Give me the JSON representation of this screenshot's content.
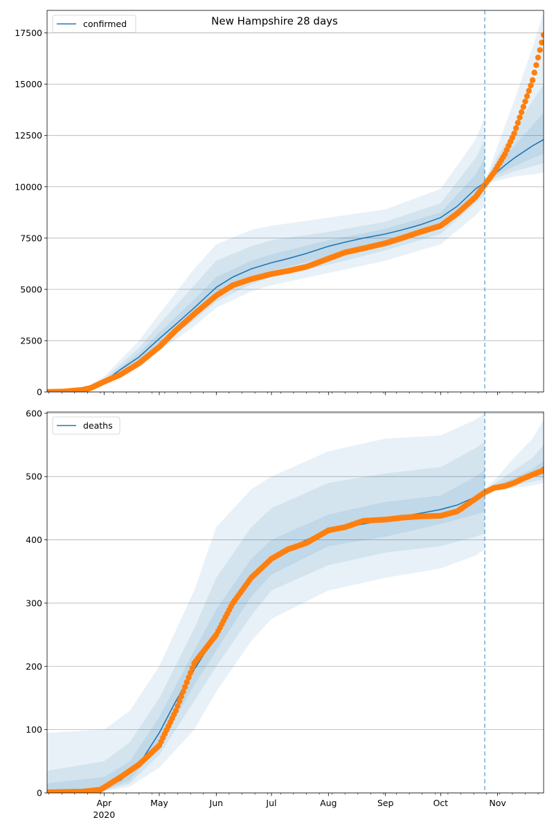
{
  "chart_data": [
    {
      "type": "line",
      "title": "New Hampshire 28 days",
      "xlabel": "",
      "ylabel": "",
      "legend": {
        "entries": [
          "confirmed"
        ],
        "placement": "top-left"
      },
      "grid": "y",
      "xlim": [
        "2020-03-01",
        "2020-11-26"
      ],
      "ylim": [
        0,
        18600
      ],
      "y_ticks": [
        0,
        2500,
        5000,
        7500,
        10000,
        12500,
        15000,
        17500
      ],
      "y_tick_labels": [
        "0",
        "2500",
        "5000",
        "7500",
        "10000",
        "12500",
        "15000",
        "17500"
      ],
      "forecast_start": "2020-10-25",
      "colors": {
        "model": "#1f77b4",
        "observed": "#ff7f0e",
        "band": "#1f77b4"
      },
      "series": [
        {
          "name": "confirmed",
          "kind": "model-median",
          "x": [
            "2020-03-01",
            "2020-03-10",
            "2020-03-20",
            "2020-03-25",
            "2020-04-01",
            "2020-04-10",
            "2020-04-20",
            "2020-05-01",
            "2020-05-10",
            "2020-05-20",
            "2020-06-01",
            "2020-06-10",
            "2020-06-20",
            "2020-07-01",
            "2020-07-10",
            "2020-07-20",
            "2020-08-01",
            "2020-08-10",
            "2020-08-20",
            "2020-09-01",
            "2020-09-10",
            "2020-09-20",
            "2020-10-01",
            "2020-10-10",
            "2020-10-20",
            "2020-10-25",
            "2020-10-30",
            "2020-11-05",
            "2020-11-10",
            "2020-11-15",
            "2020-11-20",
            "2020-11-26"
          ],
          "y": [
            0,
            20,
            100,
            180,
            500,
            1100,
            1700,
            2600,
            3300,
            4100,
            5100,
            5600,
            6000,
            6300,
            6500,
            6750,
            7100,
            7300,
            7500,
            7700,
            7900,
            8150,
            8500,
            9050,
            9900,
            10200,
            10600,
            11050,
            11400,
            11700,
            12000,
            12300
          ]
        },
        {
          "name": "",
          "kind": "observed",
          "x": [
            "2020-03-01",
            "2020-03-10",
            "2020-03-20",
            "2020-03-25",
            "2020-04-01",
            "2020-04-10",
            "2020-04-20",
            "2020-05-01",
            "2020-05-10",
            "2020-05-20",
            "2020-06-01",
            "2020-06-10",
            "2020-06-20",
            "2020-07-01",
            "2020-07-10",
            "2020-07-20",
            "2020-08-01",
            "2020-08-10",
            "2020-08-20",
            "2020-09-01",
            "2020-09-10",
            "2020-09-20",
            "2020-10-01",
            "2020-10-10",
            "2020-10-20",
            "2020-10-25",
            "2020-10-30",
            "2020-11-05",
            "2020-11-10",
            "2020-11-15",
            "2020-11-20",
            "2020-11-26"
          ],
          "y": [
            0,
            20,
            100,
            200,
            500,
            850,
            1400,
            2200,
            3000,
            3800,
            4700,
            5200,
            5500,
            5750,
            5900,
            6100,
            6500,
            6800,
            7000,
            7250,
            7500,
            7800,
            8100,
            8700,
            9500,
            10100,
            10700,
            11600,
            12600,
            13900,
            15200,
            17400
          ]
        }
      ],
      "bands": [
        {
          "x": [
            "2020-03-01",
            "2020-03-20",
            "2020-04-01",
            "2020-04-20",
            "2020-05-01",
            "2020-05-20",
            "2020-06-01",
            "2020-06-20",
            "2020-07-01",
            "2020-08-01",
            "2020-09-01",
            "2020-10-01",
            "2020-10-20",
            "2020-10-25"
          ],
          "lower": [
            0,
            80,
            400,
            1200,
            2000,
            3200,
            4100,
            4900,
            5200,
            5800,
            6400,
            7200,
            8600,
            9100
          ],
          "upper": [
            0,
            150,
            750,
            2500,
            3800,
            6000,
            7200,
            7900,
            8100,
            8500,
            8900,
            9900,
            12300,
            13400
          ]
        },
        {
          "x": [
            "2020-03-01",
            "2020-03-20",
            "2020-04-01",
            "2020-04-20",
            "2020-05-01",
            "2020-05-20",
            "2020-06-01",
            "2020-06-20",
            "2020-07-01",
            "2020-08-01",
            "2020-09-01",
            "2020-10-01",
            "2020-10-20",
            "2020-10-25"
          ],
          "lower": [
            0,
            90,
            440,
            1400,
            2200,
            3500,
            4400,
            5250,
            5600,
            6200,
            6900,
            7700,
            9200,
            9600
          ],
          "upper": [
            0,
            130,
            640,
            2150,
            3300,
            5200,
            6400,
            7100,
            7400,
            7800,
            8300,
            9200,
            11400,
            12300
          ]
        },
        {
          "x": [
            "2020-03-01",
            "2020-03-20",
            "2020-04-01",
            "2020-04-20",
            "2020-05-01",
            "2020-05-20",
            "2020-06-01",
            "2020-06-20",
            "2020-07-01",
            "2020-08-01",
            "2020-09-01",
            "2020-10-01",
            "2020-10-20",
            "2020-10-25"
          ],
          "lower": [
            0,
            95,
            470,
            1550,
            2400,
            3800,
            4750,
            5600,
            5900,
            6600,
            7300,
            8100,
            9600,
            10050
          ],
          "upper": [
            0,
            115,
            560,
            1900,
            2900,
            4500,
            5600,
            6400,
            6700,
            7400,
            7950,
            8750,
            10600,
            11400
          ]
        },
        {
          "x": [
            "2020-10-25",
            "2020-11-01",
            "2020-11-10",
            "2020-11-20",
            "2020-11-26"
          ],
          "lower": [
            10100,
            10300,
            10500,
            10600,
            10700
          ],
          "upper": [
            10200,
            12000,
            14200,
            16800,
            18500
          ]
        },
        {
          "x": [
            "2020-10-25",
            "2020-11-01",
            "2020-11-10",
            "2020-11-20",
            "2020-11-26"
          ],
          "lower": [
            10150,
            10450,
            10750,
            11000,
            11150
          ],
          "upper": [
            10200,
            11500,
            12800,
            14200,
            15000
          ]
        },
        {
          "x": [
            "2020-10-25",
            "2020-11-01",
            "2020-11-10",
            "2020-11-20",
            "2020-11-26"
          ],
          "lower": [
            10180,
            10600,
            11000,
            11400,
            11600
          ],
          "upper": [
            10220,
            11100,
            12000,
            13000,
            13600
          ]
        }
      ]
    },
    {
      "type": "line",
      "title": "",
      "xlabel": "",
      "ylabel": "",
      "legend": {
        "entries": [
          "deaths"
        ],
        "placement": "top-left"
      },
      "grid": "y",
      "xlim": [
        "2020-03-01",
        "2020-11-26"
      ],
      "ylim": [
        0,
        602
      ],
      "y_ticks": [
        0,
        100,
        200,
        300,
        400,
        500,
        600
      ],
      "y_tick_labels": [
        "0",
        "100",
        "200",
        "300",
        "400",
        "500",
        "600"
      ],
      "x_ticks": [
        "2020-04-01",
        "2020-05-01",
        "2020-06-01",
        "2020-07-01",
        "2020-08-01",
        "2020-09-01",
        "2020-10-01",
        "2020-11-01"
      ],
      "x_tick_labels": [
        "Apr",
        "May",
        "Jun",
        "Jul",
        "Aug",
        "Sep",
        "Oct",
        "Nov"
      ],
      "x_year_label": "2020",
      "forecast_start": "2020-10-25",
      "colors": {
        "model": "#1f77b4",
        "observed": "#ff7f0e",
        "band": "#1f77b4"
      },
      "series": [
        {
          "name": "deaths",
          "kind": "model-median",
          "x": [
            "2020-03-01",
            "2020-03-20",
            "2020-03-30",
            "2020-04-10",
            "2020-04-20",
            "2020-05-01",
            "2020-05-10",
            "2020-05-20",
            "2020-06-01",
            "2020-06-10",
            "2020-06-20",
            "2020-07-01",
            "2020-07-10",
            "2020-07-20",
            "2020-08-01",
            "2020-08-10",
            "2020-08-20",
            "2020-09-01",
            "2020-09-10",
            "2020-09-20",
            "2020-10-01",
            "2020-10-10",
            "2020-10-20",
            "2020-10-25",
            "2020-10-30",
            "2020-11-05",
            "2020-11-10",
            "2020-11-15",
            "2020-11-20",
            "2020-11-26"
          ],
          "y": [
            2,
            4,
            8,
            20,
            45,
            95,
            145,
            195,
            250,
            300,
            345,
            370,
            385,
            400,
            415,
            420,
            425,
            432,
            437,
            442,
            448,
            455,
            468,
            478,
            480,
            485,
            490,
            495,
            503,
            515
          ]
        },
        {
          "name": "",
          "kind": "observed",
          "x": [
            "2020-03-01",
            "2020-03-20",
            "2020-03-30",
            "2020-04-10",
            "2020-04-20",
            "2020-05-01",
            "2020-05-10",
            "2020-05-20",
            "2020-06-01",
            "2020-06-10",
            "2020-06-20",
            "2020-07-01",
            "2020-07-10",
            "2020-07-20",
            "2020-08-01",
            "2020-08-10",
            "2020-08-20",
            "2020-09-01",
            "2020-09-10",
            "2020-09-20",
            "2020-10-01",
            "2020-10-10",
            "2020-10-20",
            "2020-10-25",
            "2020-10-30",
            "2020-11-05",
            "2020-11-10",
            "2020-11-15",
            "2020-11-20",
            "2020-11-26"
          ],
          "y": [
            1,
            2,
            5,
            25,
            45,
            75,
            130,
            205,
            250,
            300,
            340,
            370,
            385,
            395,
            415,
            420,
            430,
            432,
            435,
            437,
            438,
            445,
            465,
            475,
            482,
            485,
            490,
            497,
            503,
            510
          ]
        }
      ],
      "bands": [
        {
          "x": [
            "2020-03-01",
            "2020-04-01",
            "2020-04-15",
            "2020-05-01",
            "2020-05-20",
            "2020-06-01",
            "2020-06-20",
            "2020-07-01",
            "2020-08-01",
            "2020-09-01",
            "2020-10-01",
            "2020-10-20",
            "2020-10-25"
          ],
          "lower": [
            0,
            2,
            10,
            40,
            100,
            160,
            240,
            275,
            320,
            340,
            355,
            375,
            385
          ],
          "upper": [
            95,
            100,
            130,
            200,
            320,
            420,
            480,
            500,
            540,
            560,
            565,
            590,
            600
          ]
        },
        {
          "x": [
            "2020-03-01",
            "2020-04-01",
            "2020-04-15",
            "2020-05-01",
            "2020-05-20",
            "2020-06-01",
            "2020-06-20",
            "2020-07-01",
            "2020-08-01",
            "2020-09-01",
            "2020-10-01",
            "2020-10-20",
            "2020-10-25"
          ],
          "lower": [
            0,
            3,
            15,
            60,
            145,
            200,
            280,
            320,
            360,
            380,
            390,
            405,
            410
          ],
          "upper": [
            35,
            50,
            80,
            150,
            260,
            340,
            420,
            450,
            490,
            505,
            515,
            545,
            555
          ]
        },
        {
          "x": [
            "2020-03-01",
            "2020-04-01",
            "2020-04-15",
            "2020-05-01",
            "2020-05-20",
            "2020-06-01",
            "2020-06-20",
            "2020-07-01",
            "2020-08-01",
            "2020-09-01",
            "2020-10-01",
            "2020-10-20",
            "2020-10-25"
          ],
          "lower": [
            1,
            4,
            20,
            75,
            170,
            225,
            310,
            345,
            390,
            405,
            425,
            440,
            445
          ],
          "upper": [
            15,
            25,
            50,
            120,
            225,
            290,
            370,
            400,
            440,
            460,
            470,
            500,
            510
          ]
        },
        {
          "x": [
            "2020-10-25",
            "2020-11-01",
            "2020-11-10",
            "2020-11-20",
            "2020-11-26"
          ],
          "lower": [
            475,
            478,
            482,
            486,
            490
          ],
          "upper": [
            480,
            500,
            530,
            560,
            590
          ]
        },
        {
          "x": [
            "2020-10-25",
            "2020-11-01",
            "2020-11-10",
            "2020-11-20",
            "2020-11-26"
          ],
          "lower": [
            476,
            480,
            486,
            492,
            496
          ],
          "upper": [
            479,
            492,
            510,
            530,
            550
          ]
        },
        {
          "x": [
            "2020-10-25",
            "2020-11-01",
            "2020-11-10",
            "2020-11-20",
            "2020-11-26"
          ],
          "lower": [
            477,
            482,
            490,
            498,
            503
          ],
          "upper": [
            478,
            488,
            498,
            512,
            525
          ]
        }
      ]
    }
  ]
}
